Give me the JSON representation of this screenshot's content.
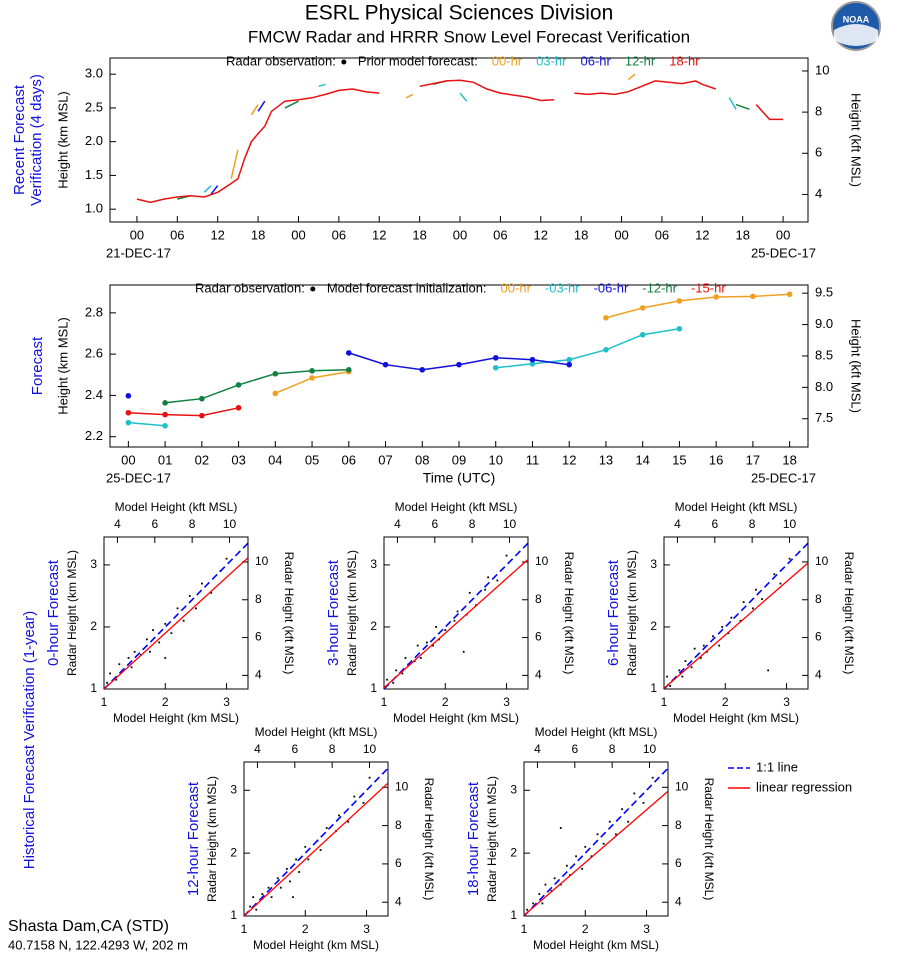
{
  "title": "ESRL Physical Sciences Division",
  "subtitle": "FMCW Radar and HRRR Snow Level Forecast Verification",
  "logo_text": "NOAA",
  "historical_label": "Historical Forecast Verification (1-year)",
  "scatter_legend": [
    {
      "name": "1:1 line",
      "color": "#0000ff"
    },
    {
      "name": "linear regression",
      "color": "#ff0000"
    }
  ],
  "station": "Shasta Dam,CA (STD)",
  "location": "40.7158 N, 122.4293 W, 202 m",
  "chart_data": [
    {
      "type": "line",
      "side_label": [
        "Recent Forecast",
        "Verification (4 days)"
      ],
      "ylabel": "Height (km MSL)",
      "y2label": "Height (kft MSL)",
      "legend_title": "Prior model forecast:",
      "date_labels": [
        "21-DEC-17",
        "25-DEC-17"
      ],
      "markers": false,
      "xlim": [
        -4,
        99.7
      ],
      "xticks": [
        {
          "value": 0,
          "label": "00"
        },
        {
          "value": 6,
          "label": "06"
        },
        12,
        18,
        {
          "value": 24,
          "label": "00"
        },
        {
          "value": 30,
          "label": "06"
        },
        {
          "value": 36,
          "label": "12"
        },
        {
          "value": 42,
          "label": "18"
        },
        {
          "value": 48,
          "label": "00"
        },
        {
          "value": 54,
          "label": "06"
        },
        {
          "value": 60,
          "label": "12"
        },
        {
          "value": 66,
          "label": "18"
        },
        {
          "value": 72,
          "label": "00"
        },
        {
          "value": 78,
          "label": "06"
        },
        {
          "value": 84,
          "label": "12"
        },
        {
          "value": 90,
          "label": "18"
        },
        {
          "value": 96,
          "label": "00"
        }
      ],
      "ylim": [
        0.81,
        3.24
      ],
      "yticks": [
        {
          "value": 1,
          "label": "1.0"
        },
        1.5,
        {
          "value": 2,
          "label": "2.0"
        },
        2.5,
        {
          "value": 3,
          "label": "3.0"
        }
      ],
      "y2lim": [
        2.66,
        10.63
      ],
      "y2ticks": [
        4,
        6,
        8,
        10
      ],
      "series": [
        {
          "name": "Radar observation:",
          "color": "#000000",
          "x": [],
          "values": []
        },
        {
          "name": "00-hr",
          "color": "#f0a020",
          "x": [
            14,
            15,
            16,
            17,
            18,
            19,
            40,
            41,
            42,
            73,
            74
          ],
          "values": [
            1.45,
            1.88,
            null,
            2.4,
            2.55,
            null,
            2.65,
            2.7,
            null,
            2.92,
            3.0
          ]
        },
        {
          "name": "03-hr",
          "color": "#20c0c8",
          "x": [
            10,
            11,
            12,
            27,
            28,
            29,
            48,
            49,
            50,
            88,
            89
          ],
          "values": [
            1.25,
            1.35,
            null,
            2.82,
            2.85,
            null,
            2.72,
            2.6,
            null,
            2.65,
            2.48
          ]
        },
        {
          "name": "06-hr",
          "color": "#1010e0",
          "x": [
            11,
            12,
            13,
            18,
            19
          ],
          "values": [
            1.22,
            1.35,
            null,
            2.45,
            2.6
          ]
        },
        {
          "name": "12-hr",
          "color": "#108040",
          "x": [
            6,
            8,
            9,
            22,
            24,
            25,
            44,
            46,
            47,
            89,
            91
          ],
          "values": [
            1.15,
            1.2,
            null,
            2.5,
            2.6,
            null,
            2.85,
            2.9,
            null,
            2.55,
            2.48
          ]
        },
        {
          "name": "18-hr",
          "color": "#e81010",
          "x": [
            0,
            2,
            4,
            6,
            8,
            10,
            12,
            14,
            15,
            16,
            17,
            18,
            19,
            20,
            22,
            24,
            26,
            28,
            30,
            32,
            34,
            36,
            38,
            42,
            44,
            46,
            48,
            50,
            52,
            54,
            56,
            58,
            60,
            62,
            63,
            65,
            67,
            69,
            71,
            73,
            75,
            77,
            79,
            81,
            83,
            84,
            86,
            88,
            92,
            94,
            96
          ],
          "values": [
            1.15,
            1.1,
            1.15,
            1.18,
            1.2,
            1.18,
            1.25,
            1.38,
            1.45,
            1.75,
            2.0,
            2.12,
            2.23,
            2.45,
            2.6,
            2.62,
            2.65,
            2.7,
            2.76,
            2.78,
            2.74,
            2.72,
            null,
            2.82,
            2.86,
            2.9,
            2.91,
            2.88,
            2.78,
            2.72,
            2.69,
            2.66,
            2.61,
            2.62,
            null,
            2.72,
            2.7,
            2.72,
            2.7,
            2.74,
            2.82,
            2.9,
            2.88,
            2.86,
            2.9,
            2.85,
            2.78,
            null,
            2.55,
            2.33,
            2.33
          ]
        }
      ]
    },
    {
      "type": "line",
      "side_label": [
        "Forecast"
      ],
      "ylabel": "Height (km MSL)",
      "y2label": "Height (kft MSL)",
      "xlabel": "Time (UTC)",
      "legend_title": "Model forecast initialization:",
      "date_labels": [
        "25-DEC-17",
        "25-DEC-17"
      ],
      "markers": true,
      "xlim": [
        -0.5,
        18.5
      ],
      "xticks": [
        {
          "value": 0,
          "label": "00"
        },
        {
          "value": 1,
          "label": "01"
        },
        {
          "value": 2,
          "label": "02"
        },
        {
          "value": 3,
          "label": "03"
        },
        {
          "value": 4,
          "label": "04"
        },
        {
          "value": 5,
          "label": "05"
        },
        {
          "value": 6,
          "label": "06"
        },
        {
          "value": 7,
          "label": "07"
        },
        {
          "value": 8,
          "label": "08"
        },
        {
          "value": 9,
          "label": "09"
        },
        10,
        11,
        12,
        13,
        14,
        15,
        16,
        17,
        18
      ],
      "ylim": [
        2.15,
        2.935
      ],
      "yticks": [
        2.2,
        2.4,
        2.6,
        2.8
      ],
      "y2lim": [
        7.05,
        9.63
      ],
      "y2ticks": [
        7.5,
        {
          "value": 8,
          "label": "8.0"
        },
        8.5,
        {
          "value": 9,
          "label": "9.0"
        },
        9.5
      ],
      "series": [
        {
          "name": "Radar observation:",
          "color": "#000000",
          "x": [],
          "values": []
        },
        {
          "name": "00-hr",
          "color": "#f0a020",
          "x": [
            4,
            5,
            6,
            7,
            13,
            14,
            15,
            16,
            17,
            18
          ],
          "values": [
            2.41,
            2.485,
            2.515,
            null,
            2.776,
            2.824,
            2.858,
            2.877,
            2.88,
            2.89
          ]
        },
        {
          "name": "-03-hr",
          "color": "#20c0c8",
          "x": [
            0,
            1,
            2,
            10,
            11,
            12,
            13,
            14,
            15
          ],
          "values": [
            2.268,
            2.253,
            null,
            2.534,
            2.553,
            2.573,
            2.621,
            2.694,
            2.723
          ]
        },
        {
          "name": "-06-hr",
          "color": "#1010e0",
          "x": [
            0,
            1,
            6,
            7,
            8,
            9,
            10,
            11,
            12
          ],
          "values": [
            2.398,
            null,
            2.606,
            2.549,
            2.524,
            2.549,
            2.582,
            2.573,
            2.549
          ]
        },
        {
          "name": "-12-hr",
          "color": "#108040",
          "x": [
            1,
            2,
            3,
            4,
            5,
            6
          ],
          "values": [
            2.364,
            2.384,
            2.451,
            2.505,
            2.519,
            2.524
          ]
        },
        {
          "name": "-15-hr",
          "color": "#e81010",
          "x": [
            0,
            1,
            2,
            3
          ],
          "values": [
            2.316,
            2.307,
            2.302,
            2.34
          ]
        }
      ]
    },
    {
      "type": "scatter",
      "side_label": "0-hour Forecast",
      "xlabel": "Model Height (km MSL)",
      "x2label": "Model Height (kft MSL)",
      "ylabel": "Radar Height (km MSL)",
      "y2label": "Radar Height (kft MSL)",
      "xlim": [
        1,
        3.35
      ],
      "xticks": [
        1,
        2,
        3
      ],
      "x2lim": [
        3.28,
        10.99
      ],
      "x2ticks": [
        4,
        6,
        8,
        10
      ],
      "ylim": [
        1,
        3.45
      ],
      "yticks": [
        1,
        2,
        3
      ],
      "y2lim": [
        3.28,
        11.32
      ],
      "y2ticks": [
        4,
        6,
        8,
        10
      ],
      "regression": {
        "slope": 0.9,
        "intercept": 0.1
      },
      "color": "#000000",
      "x": [
        1.05,
        1.1,
        1.2,
        1.25,
        1.3,
        1.4,
        1.45,
        1.5,
        1.6,
        1.7,
        1.75,
        1.8,
        1.9,
        2.0,
        2.1,
        2.2,
        2.3,
        2.4,
        2.5,
        2.6,
        2.75,
        2.9,
        3.0,
        2.0
      ],
      "values": [
        1.1,
        1.25,
        1.15,
        1.4,
        1.3,
        1.5,
        1.35,
        1.6,
        1.55,
        1.8,
        1.6,
        1.95,
        1.75,
        2.05,
        1.9,
        2.3,
        2.1,
        2.5,
        2.3,
        2.7,
        2.55,
        2.9,
        3.1,
        1.5
      ]
    },
    {
      "type": "scatter",
      "side_label": "3-hour Forecast",
      "xlabel": "Model Height (km MSL)",
      "x2label": "Model Height (kft MSL)",
      "ylabel": "Radar Height (km MSL)",
      "y2label": "Radar Height (kft MSL)",
      "xlim": [
        1,
        3.35
      ],
      "xticks": [
        1,
        2,
        3
      ],
      "x2lim": [
        3.28,
        10.99
      ],
      "x2ticks": [
        4,
        6,
        8,
        10
      ],
      "ylim": [
        1,
        3.45
      ],
      "yticks": [
        1,
        2,
        3
      ],
      "y2lim": [
        3.28,
        11.32
      ],
      "y2ticks": [
        4,
        6,
        8,
        10
      ],
      "regression": {
        "slope": 0.88,
        "intercept": 0.14
      },
      "color": "#000000",
      "x": [
        1.05,
        1.15,
        1.2,
        1.3,
        1.35,
        1.4,
        1.5,
        1.55,
        1.6,
        1.7,
        1.8,
        1.85,
        1.9,
        2.0,
        2.15,
        2.2,
        2.35,
        2.4,
        2.5,
        2.65,
        2.7,
        2.85,
        3.0,
        2.3
      ],
      "values": [
        1.15,
        1.1,
        1.3,
        1.25,
        1.5,
        1.4,
        1.45,
        1.7,
        1.5,
        1.75,
        1.7,
        2.0,
        1.8,
        1.95,
        2.1,
        2.25,
        2.2,
        2.55,
        2.35,
        2.6,
        2.8,
        2.75,
        3.15,
        1.6
      ]
    },
    {
      "type": "scatter",
      "side_label": "6-hour Forecast",
      "xlabel": "Model Height (km MSL)",
      "x2label": "Model Height (kft MSL)",
      "ylabel": "Radar Height (km MSL)",
      "y2label": "Radar Height (kft MSL)",
      "xlim": [
        1,
        3.35
      ],
      "xticks": [
        1,
        2,
        3
      ],
      "x2lim": [
        3.28,
        10.99
      ],
      "x2ticks": [
        4,
        6,
        8,
        10
      ],
      "ylim": [
        1,
        3.45
      ],
      "yticks": [
        1,
        2,
        3
      ],
      "y2lim": [
        3.28,
        11.32
      ],
      "y2ticks": [
        4,
        6,
        8,
        10
      ],
      "regression": {
        "slope": 0.86,
        "intercept": 0.15
      },
      "color": "#000000",
      "x": [
        1.05,
        1.1,
        1.25,
        1.3,
        1.35,
        1.45,
        1.5,
        1.6,
        1.65,
        1.7,
        1.8,
        1.9,
        1.95,
        2.05,
        2.1,
        2.25,
        2.3,
        2.45,
        2.5,
        2.6,
        2.8,
        2.9,
        3.05,
        2.7
      ],
      "values": [
        1.2,
        1.05,
        1.3,
        1.2,
        1.45,
        1.35,
        1.65,
        1.5,
        1.7,
        1.6,
        1.85,
        1.7,
        2.0,
        1.9,
        2.15,
        2.1,
        2.4,
        2.3,
        2.6,
        2.45,
        2.85,
        2.7,
        3.1,
        1.3
      ]
    },
    {
      "type": "scatter",
      "side_label": "12-hour Forecast",
      "xlabel": "Model Height (km MSL)",
      "x2label": "Model Height (kft MSL)",
      "ylabel": "Radar Height (km MSL)",
      "y2label": "Radar Height (kft MSL)",
      "xlim": [
        1,
        3.35
      ],
      "xticks": [
        1,
        2,
        3
      ],
      "x2lim": [
        3.28,
        10.99
      ],
      "x2ticks": [
        4,
        6,
        8,
        10
      ],
      "ylim": [
        1,
        3.45
      ],
      "yticks": [
        1,
        2,
        3
      ],
      "y2lim": [
        3.28,
        11.32
      ],
      "y2ticks": [
        4,
        6,
        8,
        10
      ],
      "regression": {
        "slope": 0.9,
        "intercept": 0.1
      },
      "color": "#000000",
      "x": [
        1.1,
        1.15,
        1.2,
        1.3,
        1.4,
        1.45,
        1.55,
        1.6,
        1.7,
        1.75,
        1.85,
        1.9,
        2.0,
        2.05,
        2.2,
        2.25,
        2.35,
        2.5,
        2.55,
        2.7,
        2.8,
        2.95,
        3.05,
        1.8
      ],
      "values": [
        1.15,
        1.3,
        1.1,
        1.35,
        1.45,
        1.3,
        1.6,
        1.45,
        1.75,
        1.55,
        1.9,
        1.7,
        2.1,
        1.9,
        2.2,
        2.05,
        2.4,
        2.35,
        2.6,
        2.5,
        2.9,
        2.8,
        3.2,
        1.3
      ]
    },
    {
      "type": "scatter",
      "side_label": "18-hour Forecast",
      "xlabel": "Model Height (km MSL)",
      "x2label": "Model Height (kft MSL)",
      "ylabel": "Radar Height (km MSL)",
      "y2label": "Radar Height (kft MSL)",
      "xlim": [
        1,
        3.35
      ],
      "xticks": [
        1,
        2,
        3
      ],
      "x2lim": [
        3.28,
        10.99
      ],
      "x2ticks": [
        4,
        6,
        8,
        10
      ],
      "ylim": [
        1,
        3.45
      ],
      "yticks": [
        1,
        2,
        3
      ],
      "y2lim": [
        3.28,
        11.32
      ],
      "y2ticks": [
        4,
        6,
        8,
        10
      ],
      "regression": {
        "slope": 0.84,
        "intercept": 0.17
      },
      "color": "#000000",
      "x": [
        1.05,
        1.15,
        1.25,
        1.3,
        1.35,
        1.45,
        1.5,
        1.6,
        1.7,
        1.75,
        1.85,
        1.95,
        2.0,
        2.1,
        2.2,
        2.3,
        2.4,
        2.5,
        2.6,
        2.7,
        2.8,
        2.95,
        3.1,
        1.6
      ],
      "values": [
        1.1,
        1.2,
        1.35,
        1.2,
        1.5,
        1.4,
        1.6,
        1.5,
        1.8,
        1.65,
        1.95,
        1.75,
        2.1,
        1.95,
        2.3,
        2.15,
        2.5,
        2.3,
        2.7,
        2.5,
        2.95,
        2.8,
        3.2,
        2.4
      ]
    }
  ]
}
